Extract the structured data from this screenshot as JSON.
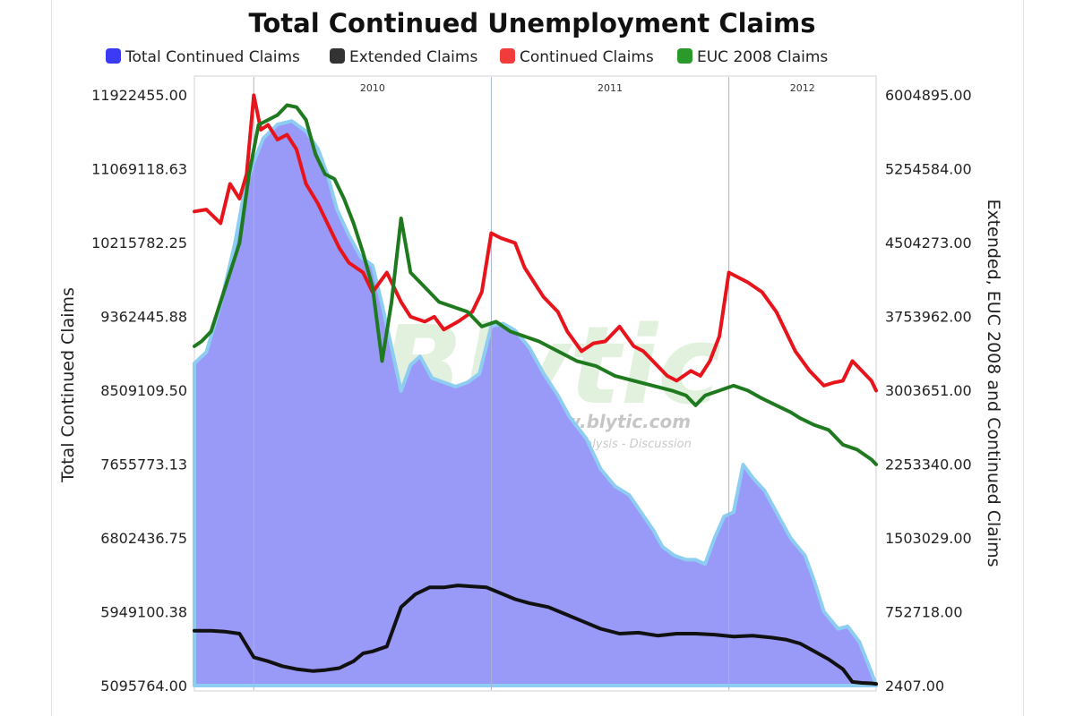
{
  "chart_data": {
    "type": "line",
    "title": "Total Continued Unemployment Claims",
    "legend_placement": "top",
    "grid": {
      "vertical_year_lines": true,
      "horizontal": false
    },
    "legend": [
      {
        "name": "Total Continued Claims",
        "color": "#3b3bf5"
      },
      {
        "name": "Extended Claims",
        "color": "#333333"
      },
      {
        "name": "Continued Claims",
        "color": "#f23b3b"
      },
      {
        "name": "EUC 2008 Claims",
        "color": "#2a9a2a"
      }
    ],
    "x_axis": {
      "range": [
        2009.75,
        2012.62
      ],
      "year_labels": [
        "2010",
        "2011",
        "2012"
      ],
      "year_boundaries": [
        2010.0,
        2011.0,
        2012.0
      ]
    },
    "y_left": {
      "label": "Total Continued Claims",
      "range": [
        5095764.0,
        11922455.0
      ],
      "ticks": [
        "11922455.00",
        "11069118.63",
        "10215782.25",
        "9362445.88",
        "8509109.50",
        "7655773.13",
        "6802436.75",
        "5949100.38",
        "5095764.00"
      ]
    },
    "y_right": {
      "label": "Extended, EUC 2008 and Continued Claims",
      "range": [
        2407.0,
        6004895.0
      ],
      "ticks": [
        "6004895.00",
        "5254584.00",
        "4504273.00",
        "3753962.00",
        "3003651.00",
        "2253340.00",
        "1503029.00",
        "752718.00",
        "2407.00"
      ]
    },
    "series": [
      {
        "name": "Total Continued Claims",
        "axis": "left",
        "style": "area",
        "color": "#3b3bf5",
        "x": [
          2009.75,
          2009.8,
          2009.86,
          2009.92,
          2009.96,
          2010.0,
          2010.04,
          2010.1,
          2010.16,
          2010.22,
          2010.27,
          2010.31,
          2010.35,
          2010.4,
          2010.45,
          2010.5,
          2010.54,
          2010.58,
          2010.62,
          2010.66,
          2010.7,
          2010.75,
          2010.8,
          2010.85,
          2010.9,
          2010.95,
          2011.0,
          2011.05,
          2011.1,
          2011.16,
          2011.22,
          2011.28,
          2011.33,
          2011.4,
          2011.46,
          2011.52,
          2011.58,
          2011.63,
          2011.68,
          2011.72,
          2011.77,
          2011.82,
          2011.86,
          2011.9,
          2011.94,
          2011.98,
          2012.02,
          2012.06,
          2012.1,
          2012.15,
          2012.2,
          2012.26,
          2012.32,
          2012.36,
          2012.4,
          2012.46,
          2012.5,
          2012.55,
          2012.6,
          2012.62
        ],
        "values": [
          8820000,
          8950000,
          9500000,
          10200000,
          10800000,
          11150000,
          11420000,
          11580000,
          11620000,
          11500000,
          11300000,
          11000000,
          10600000,
          10300000,
          10050000,
          9950000,
          9500000,
          9000000,
          8500000,
          8800000,
          8900000,
          8650000,
          8600000,
          8550000,
          8600000,
          8700000,
          9250000,
          9280000,
          9200000,
          9000000,
          8700000,
          8450000,
          8200000,
          7950000,
          7600000,
          7400000,
          7300000,
          7100000,
          6900000,
          6700000,
          6600000,
          6550000,
          6550000,
          6500000,
          6800000,
          7050000,
          7100000,
          7650000,
          7500000,
          7350000,
          7100000,
          6800000,
          6600000,
          6300000,
          5950000,
          5750000,
          5780000,
          5600000,
          5250000,
          5100000
        ]
      },
      {
        "name": "Extended Claims",
        "axis": "right",
        "style": "line",
        "color": "#111111",
        "x": [
          2009.75,
          2009.82,
          2009.88,
          2009.94,
          2010.0,
          2010.06,
          2010.12,
          2010.18,
          2010.25,
          2010.3,
          2010.36,
          2010.42,
          2010.46,
          2010.5,
          2010.56,
          2010.62,
          2010.68,
          2010.74,
          2010.8,
          2010.86,
          2010.92,
          2010.98,
          2011.04,
          2011.1,
          2011.16,
          2011.24,
          2011.3,
          2011.38,
          2011.46,
          2011.54,
          2011.62,
          2011.7,
          2011.78,
          2011.86,
          2011.94,
          2012.02,
          2012.1,
          2012.18,
          2012.24,
          2012.3,
          2012.36,
          2012.42,
          2012.48,
          2012.52,
          2012.56,
          2012.6,
          2012.62
        ],
        "values": [
          560000,
          560000,
          550000,
          530000,
          290000,
          250000,
          200000,
          170000,
          150000,
          160000,
          180000,
          250000,
          330000,
          350000,
          400000,
          800000,
          930000,
          1000000,
          1000000,
          1020000,
          1010000,
          1000000,
          940000,
          880000,
          840000,
          800000,
          740000,
          660000,
          580000,
          530000,
          540000,
          510000,
          530000,
          530000,
          520000,
          500000,
          510000,
          490000,
          470000,
          430000,
          350000,
          270000,
          170000,
          40000,
          30000,
          25000,
          20000
        ]
      },
      {
        "name": "Continued Claims",
        "axis": "right",
        "style": "line",
        "color": "#e8141c",
        "x": [
          2009.75,
          2009.8,
          2009.86,
          2009.9,
          2009.94,
          2009.97,
          2010.0,
          2010.03,
          2010.06,
          2010.1,
          2010.14,
          2010.18,
          2010.22,
          2010.27,
          2010.32,
          2010.36,
          2010.4,
          2010.46,
          2010.5,
          2010.56,
          2010.62,
          2010.66,
          2010.72,
          2010.76,
          2010.8,
          2010.86,
          2010.92,
          2010.96,
          2011.0,
          2011.04,
          2011.1,
          2011.14,
          2011.18,
          2011.22,
          2011.28,
          2011.32,
          2011.38,
          2011.43,
          2011.48,
          2011.54,
          2011.6,
          2011.64,
          2011.7,
          2011.74,
          2011.78,
          2011.84,
          2011.88,
          2011.92,
          2011.96,
          2012.0,
          2012.04,
          2012.08,
          2012.14,
          2012.2,
          2012.24,
          2012.28,
          2012.34,
          2012.4,
          2012.44,
          2012.48,
          2012.52,
          2012.56,
          2012.6,
          2012.62
        ],
        "values": [
          4820000,
          4840000,
          4700000,
          5100000,
          4950000,
          5200000,
          6000000,
          5650000,
          5700000,
          5550000,
          5600000,
          5450000,
          5100000,
          4900000,
          4650000,
          4450000,
          4300000,
          4200000,
          4000000,
          4200000,
          3900000,
          3750000,
          3700000,
          3750000,
          3620000,
          3700000,
          3800000,
          4000000,
          4600000,
          4550000,
          4500000,
          4250000,
          4100000,
          3950000,
          3800000,
          3600000,
          3400000,
          3480000,
          3500000,
          3650000,
          3450000,
          3400000,
          3250000,
          3150000,
          3100000,
          3200000,
          3150000,
          3300000,
          3550000,
          4200000,
          4150000,
          4100000,
          4000000,
          3800000,
          3600000,
          3400000,
          3200000,
          3050000,
          3080000,
          3100000,
          3300000,
          3200000,
          3100000,
          3000000
        ]
      },
      {
        "name": "EUC 2008 Claims",
        "axis": "right",
        "style": "line",
        "color": "#1f7a1f",
        "x": [
          2009.75,
          2009.78,
          2009.82,
          2009.86,
          2009.9,
          2009.94,
          2009.98,
          2010.02,
          2010.06,
          2010.1,
          2010.14,
          2010.18,
          2010.22,
          2010.26,
          2010.3,
          2010.34,
          2010.38,
          2010.42,
          2010.46,
          2010.5,
          2010.54,
          2010.58,
          2010.62,
          2010.66,
          2010.72,
          2010.78,
          2010.84,
          2010.9,
          2010.96,
          2011.02,
          2011.08,
          2011.14,
          2011.2,
          2011.28,
          2011.36,
          2011.44,
          2011.52,
          2011.6,
          2011.68,
          2011.76,
          2011.82,
          2011.86,
          2011.9,
          2011.96,
          2012.02,
          2012.08,
          2012.14,
          2012.2,
          2012.26,
          2012.3,
          2012.36,
          2012.42,
          2012.48,
          2012.54,
          2012.6,
          2012.62
        ],
        "values": [
          3450000,
          3500000,
          3600000,
          3900000,
          4200000,
          4500000,
          5200000,
          5700000,
          5750000,
          5800000,
          5900000,
          5880000,
          5750000,
          5400000,
          5200000,
          5150000,
          4950000,
          4700000,
          4400000,
          4050000,
          3300000,
          3900000,
          4750000,
          4200000,
          4050000,
          3900000,
          3850000,
          3800000,
          3650000,
          3700000,
          3600000,
          3550000,
          3500000,
          3400000,
          3300000,
          3250000,
          3150000,
          3100000,
          3050000,
          3000000,
          2950000,
          2850000,
          2950000,
          3000000,
          3050000,
          3000000,
          2920000,
          2850000,
          2780000,
          2720000,
          2650000,
          2600000,
          2450000,
          2400000,
          2300000,
          2250000
        ]
      }
    ],
    "watermark": {
      "logo": "Blytic",
      "url": "www.blytic.com",
      "tagline": "Data - Analysis - Discussion"
    }
  }
}
